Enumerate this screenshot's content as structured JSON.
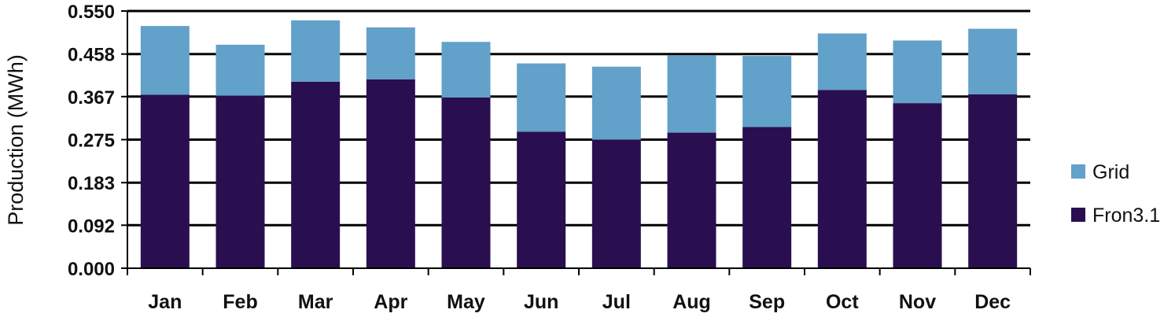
{
  "chart_data": {
    "type": "bar",
    "stacked": true,
    "title": "",
    "xlabel": "",
    "ylabel": "Production (MWh)",
    "ylim": [
      0,
      0.55
    ],
    "yticks": [
      "0.000",
      "0.092",
      "0.183",
      "0.275",
      "0.367",
      "0.458",
      "0.550"
    ],
    "ytick_values": [
      0,
      0.092,
      0.183,
      0.275,
      0.367,
      0.458,
      0.55
    ],
    "grid": true,
    "legend_position": "right",
    "categories": [
      "Jan",
      "Feb",
      "Mar",
      "Apr",
      "May",
      "Jun",
      "Jul",
      "Aug",
      "Sep",
      "Oct",
      "Nov",
      "Dec"
    ],
    "series": [
      {
        "name": "Fron3.1",
        "color": "#2a0f50",
        "values": [
          0.371,
          0.369,
          0.399,
          0.404,
          0.365,
          0.292,
          0.275,
          0.29,
          0.302,
          0.381,
          0.353,
          0.372
        ]
      },
      {
        "name": "Grid",
        "color": "#62a1c9",
        "values": [
          0.147,
          0.109,
          0.131,
          0.111,
          0.119,
          0.146,
          0.156,
          0.165,
          0.152,
          0.121,
          0.134,
          0.14
        ]
      }
    ],
    "legend_order": [
      "Grid",
      "Fron3.1"
    ]
  }
}
